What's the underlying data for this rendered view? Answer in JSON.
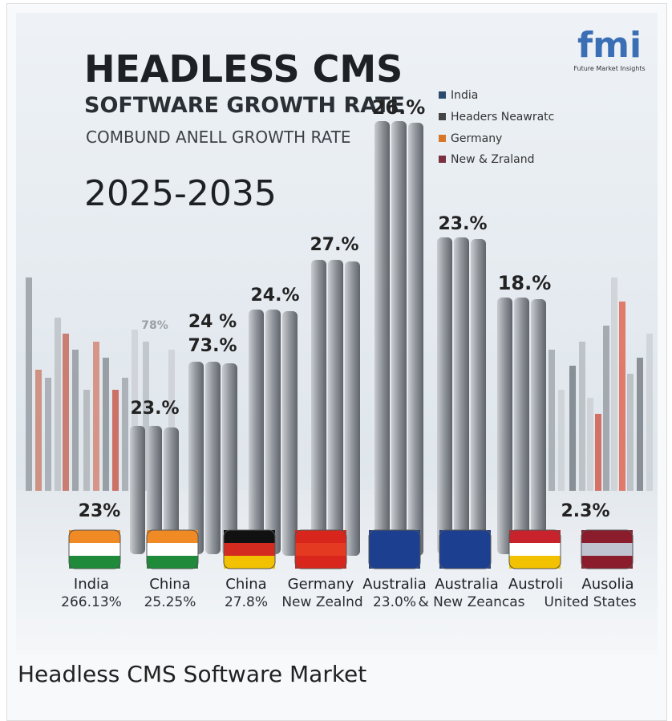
{
  "image": {
    "title": "HEADLESS CMS",
    "subtitle": "SOFTWARE GROWTH RATE",
    "tagline": "COMBUND ANELL GROWTH RATE",
    "years": "2025-2035",
    "logo": "fmi",
    "logo_caption": "Future Market Insights",
    "legend": [
      "India",
      "Headers Neawratc",
      "Germany",
      "New & Zraland"
    ],
    "bar_labels": [
      "78%",
      "23.%",
      "24 %",
      "73.%",
      "24.%",
      "27.%",
      "26.%",
      "23.%",
      "18.%",
      "23%",
      "2.3%"
    ],
    "countries": [
      "India",
      "China",
      "China",
      "Germany",
      "Australia",
      "Australia",
      "Austroli",
      "Ausolia"
    ],
    "shares": [
      "266.13%",
      "25.25%",
      "27.8%",
      "New Zealnd",
      "23.0%",
      "& New Zeancas",
      "United States"
    ]
  },
  "caption": "Headless CMS Software Market"
}
